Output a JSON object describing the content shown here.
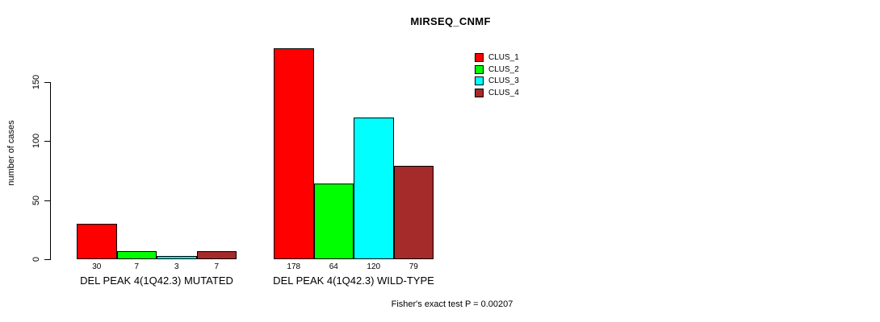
{
  "title": "MIRSEQ_CNMF",
  "chart_data": {
    "type": "bar",
    "title": "MIRSEQ_CNMF",
    "xlabel": "",
    "ylabel": "number of cases",
    "categories": [
      "DEL PEAK 4(1Q42.3) MUTATED",
      "DEL PEAK 4(1Q42.3) WILD-TYPE"
    ],
    "series": [
      {
        "name": "CLUS_1",
        "color": "#ff0000",
        "values": [
          30,
          178
        ]
      },
      {
        "name": "CLUS_2",
        "color": "#00ff00",
        "values": [
          7,
          64
        ]
      },
      {
        "name": "CLUS_3",
        "color": "#00ffff",
        "values": [
          3,
          120
        ]
      },
      {
        "name": "CLUS_4",
        "color": "#a52a2a",
        "values": [
          7,
          79
        ]
      }
    ],
    "yticks": [
      0,
      50,
      100,
      150
    ],
    "ylim": [
      0,
      185
    ],
    "grid": false,
    "value_labels_shown": true,
    "legend_position": "top-right",
    "bar_border_color": "#000000",
    "annotation": "Fisher's exact test P = 0.00207"
  },
  "colors": {
    "background": "#ffffff",
    "text": "#000000"
  }
}
